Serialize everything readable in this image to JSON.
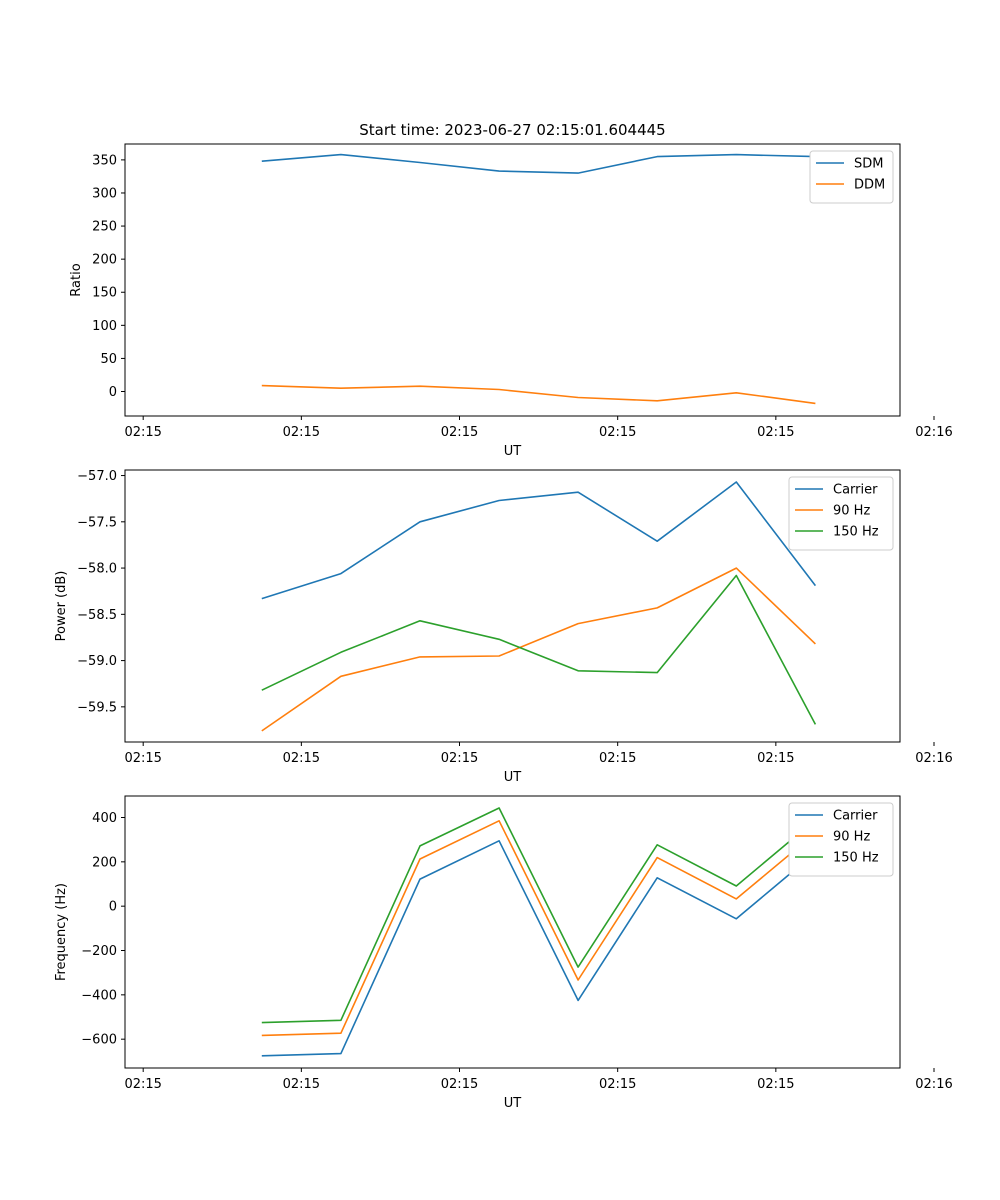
{
  "figure": {
    "title": "Start time: 2023-06-27 02:15:01.604445"
  },
  "colors": {
    "blue": "#1f77b4",
    "orange": "#ff7f0e",
    "green": "#2ca02c"
  },
  "chart_data": [
    {
      "type": "line",
      "title": "Start time: 2023-06-27 02:15:01.604445",
      "xlabel": "UT",
      "ylabel": "Ratio",
      "x": [
        1,
        2,
        3,
        4,
        5,
        6,
        7,
        8
      ],
      "xlim": [
        -0.73,
        9.07
      ],
      "xticks": [
        -0.5,
        1.5,
        3.5,
        5.5,
        7.5,
        9.5
      ],
      "xticklabels": [
        "02:15",
        "02:15",
        "02:15",
        "02:15",
        "02:15",
        "02:16"
      ],
      "ylim": [
        -37,
        374
      ],
      "yticks": [
        0,
        50,
        100,
        150,
        200,
        250,
        300,
        350
      ],
      "yticklabels": [
        "0",
        "50",
        "100",
        "150",
        "200",
        "250",
        "300",
        "350"
      ],
      "legend": "top-right",
      "series": [
        {
          "name": "SDM",
          "color": "blue",
          "values": [
            348,
            358,
            346,
            333,
            330,
            355,
            358,
            355
          ]
        },
        {
          "name": "DDM",
          "color": "orange",
          "values": [
            9,
            5,
            8,
            3,
            -9,
            -14,
            -2,
            -18
          ]
        }
      ]
    },
    {
      "type": "line",
      "title": "",
      "xlabel": "UT",
      "ylabel": "Power (dB)",
      "x": [
        1,
        2,
        3,
        4,
        5,
        6,
        7,
        8
      ],
      "xlim": [
        -0.73,
        9.07
      ],
      "xticks": [
        -0.5,
        1.5,
        3.5,
        5.5,
        7.5,
        9.5
      ],
      "xticklabels": [
        "02:15",
        "02:15",
        "02:15",
        "02:15",
        "02:15",
        "02:16"
      ],
      "ylim": [
        -59.88,
        -56.94
      ],
      "yticks": [
        -59.5,
        -59.0,
        -58.5,
        -58.0,
        -57.5,
        -57.0
      ],
      "yticklabels": [
        "−59.5",
        "−59.0",
        "−58.5",
        "−58.0",
        "−57.5",
        "−57.0"
      ],
      "legend": "top-right",
      "series": [
        {
          "name": "Carrier",
          "color": "blue",
          "values": [
            -58.33,
            -58.06,
            -57.5,
            -57.27,
            -57.18,
            -57.71,
            -57.07,
            -58.19
          ]
        },
        {
          "name": "90 Hz",
          "color": "orange",
          "values": [
            -59.76,
            -59.17,
            -58.96,
            -58.95,
            -58.6,
            -58.43,
            -58.0,
            -58.82
          ]
        },
        {
          "name": "150 Hz",
          "color": "green",
          "values": [
            -59.32,
            -58.91,
            -58.57,
            -58.77,
            -59.11,
            -59.13,
            -58.08,
            -59.69
          ]
        }
      ]
    },
    {
      "type": "line",
      "title": "",
      "xlabel": "UT",
      "ylabel": "Frequency (Hz)",
      "x": [
        1,
        2,
        3,
        4,
        5,
        6,
        7,
        8
      ],
      "xlim": [
        -0.73,
        9.07
      ],
      "xticks": [
        -0.5,
        1.5,
        3.5,
        5.5,
        7.5,
        9.5
      ],
      "xticklabels": [
        "02:15",
        "02:15",
        "02:15",
        "02:15",
        "02:15",
        "02:16"
      ],
      "ylim": [
        -730,
        497
      ],
      "yticks": [
        -600,
        -400,
        -200,
        0,
        200,
        400
      ],
      "yticklabels": [
        "−600",
        "−400",
        "−200",
        "0",
        "200",
        "400"
      ],
      "legend": "top-right",
      "series": [
        {
          "name": "Carrier",
          "color": "blue",
          "values": [
            -675,
            -665,
            122,
            295,
            -425,
            128,
            -57,
            242
          ]
        },
        {
          "name": "90 Hz",
          "color": "orange",
          "values": [
            -583,
            -573,
            213,
            385,
            -333,
            219,
            33,
            330
          ]
        },
        {
          "name": "150 Hz",
          "color": "green",
          "values": [
            -525,
            -515,
            272,
            443,
            -275,
            277,
            91,
            390
          ]
        }
      ]
    }
  ]
}
